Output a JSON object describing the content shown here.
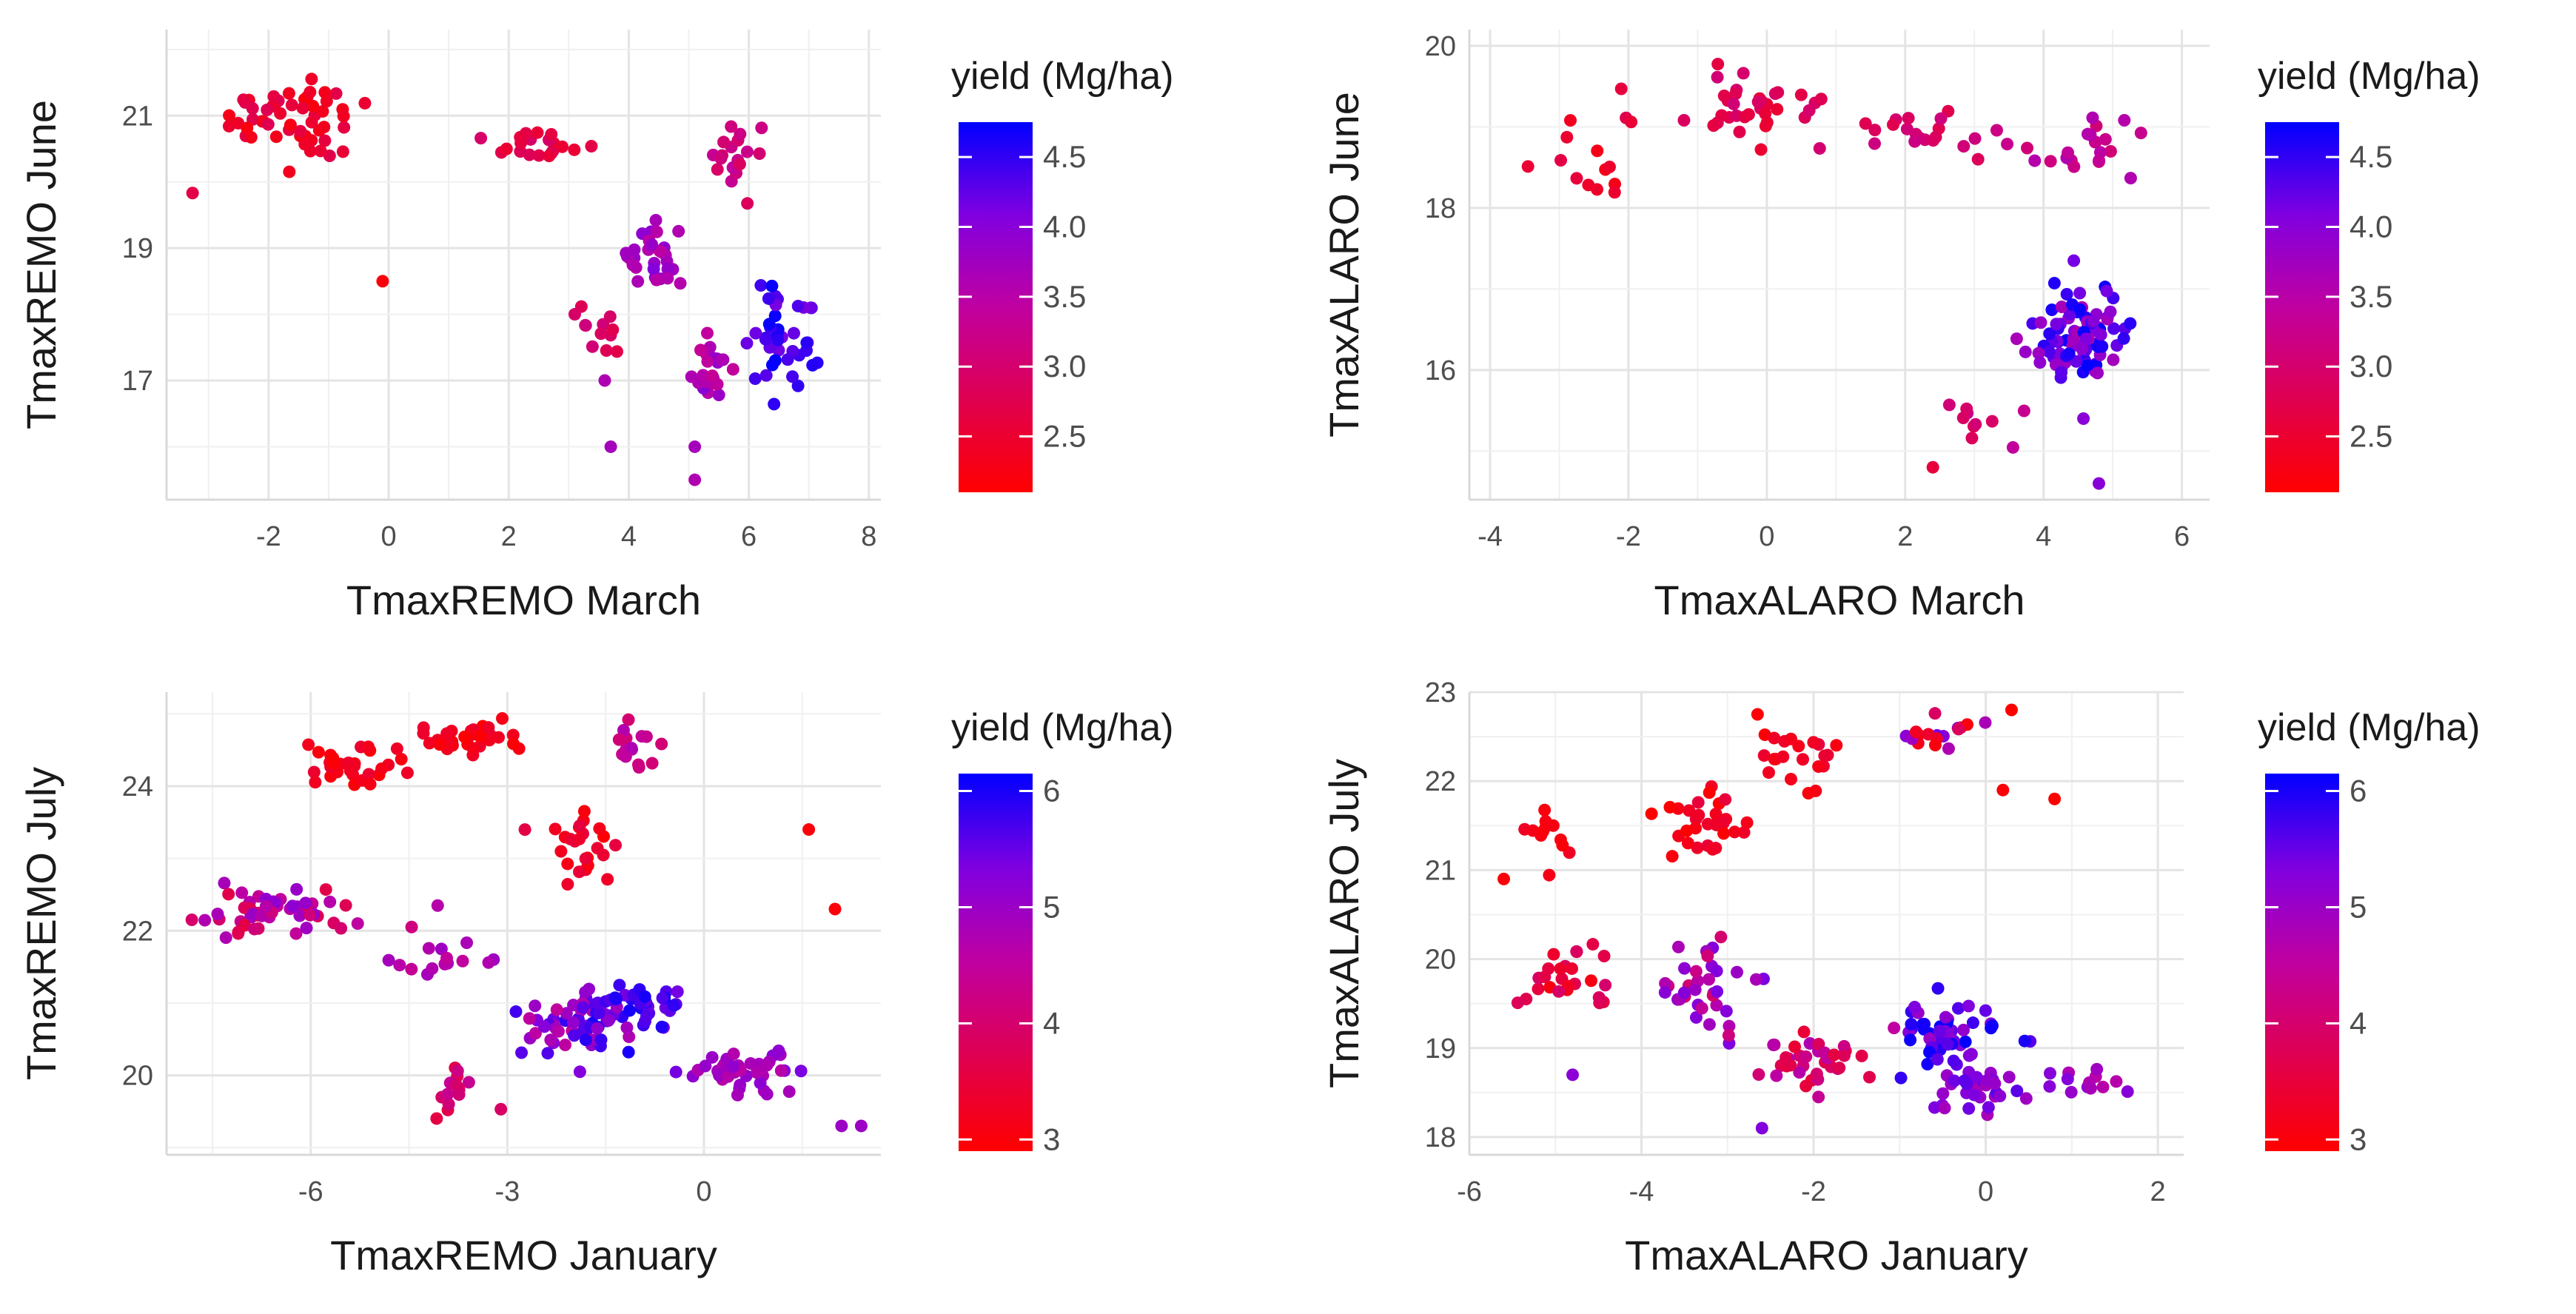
{
  "chart_data": [
    {
      "type": "scatter",
      "xlabel": "TmaxREMO March",
      "ylabel": "TmaxREMO June",
      "xlim": [
        -3.7,
        8.2
      ],
      "ylim": [
        15.2,
        22.3
      ],
      "xticks": [
        -2,
        0,
        2,
        4,
        6,
        8
      ],
      "yticks": [
        17,
        19,
        21
      ],
      "legend": {
        "title": "yield (Mg/ha)",
        "min": 2.1,
        "max": 4.75,
        "ticks": [
          2.5,
          3.0,
          3.5,
          4.0,
          4.5
        ]
      },
      "clusters": [
        {
          "cx": -1.5,
          "cy": 20.9,
          "sx": 1.1,
          "sy": 0.55,
          "n": 55,
          "v": [
            2.2,
            2.8
          ],
          "seed": 11
        },
        {
          "cx": 2.6,
          "cy": 20.5,
          "sx": 0.7,
          "sy": 0.25,
          "n": 20,
          "v": [
            2.5,
            3.0
          ],
          "seed": 12
        },
        {
          "cx": 5.7,
          "cy": 20.4,
          "sx": 0.45,
          "sy": 0.45,
          "n": 18,
          "v": [
            2.8,
            3.4
          ],
          "seed": 13
        },
        {
          "cx": 4.4,
          "cy": 18.9,
          "sx": 0.45,
          "sy": 0.45,
          "n": 30,
          "v": [
            3.4,
            4.1
          ],
          "seed": 14
        },
        {
          "cx": 6.6,
          "cy": 17.7,
          "sx": 0.6,
          "sy": 0.6,
          "n": 40,
          "v": [
            4.1,
            4.75
          ],
          "seed": 15
        },
        {
          "cx": 5.3,
          "cy": 17.2,
          "sx": 0.35,
          "sy": 0.35,
          "n": 25,
          "v": [
            3.3,
            4.0
          ],
          "seed": 16
        },
        {
          "cx": 3.5,
          "cy": 17.7,
          "sx": 0.45,
          "sy": 0.3,
          "n": 12,
          "v": [
            2.6,
            3.2
          ],
          "seed": 17
        }
      ],
      "points": [
        {
          "x": -0.1,
          "y": 18.5,
          "v": 2.2
        },
        {
          "x": 3.7,
          "y": 16.0,
          "v": 3.7
        },
        {
          "x": 5.1,
          "y": 15.5,
          "v": 3.6
        },
        {
          "x": 5.1,
          "y": 16.0,
          "v": 3.7
        },
        {
          "x": 3.6,
          "y": 17.0,
          "v": 3.6
        }
      ]
    },
    {
      "type": "scatter",
      "xlabel": "TmaxALARO March",
      "ylabel": "TmaxALARO June",
      "xlim": [
        -4.3,
        6.4
      ],
      "ylim": [
        14.4,
        20.2
      ],
      "xticks": [
        -4,
        -2,
        0,
        2,
        4,
        6
      ],
      "yticks": [
        16,
        18,
        20
      ],
      "legend": {
        "title": "yield (Mg/ha)",
        "min": 2.1,
        "max": 4.75,
        "ticks": [
          2.5,
          3.0,
          3.5,
          4.0,
          4.5
        ]
      },
      "clusters": [
        {
          "cx": -2.7,
          "cy": 18.6,
          "sx": 0.8,
          "sy": 0.55,
          "n": 15,
          "v": [
            2.2,
            2.8
          ],
          "seed": 21
        },
        {
          "cx": -0.1,
          "cy": 19.2,
          "sx": 0.7,
          "sy": 0.35,
          "n": 35,
          "v": [
            2.5,
            3.1
          ],
          "seed": 22
        },
        {
          "cx": 2.3,
          "cy": 18.9,
          "sx": 1.0,
          "sy": 0.25,
          "n": 20,
          "v": [
            2.7,
            3.2
          ],
          "seed": 23
        },
        {
          "cx": 4.7,
          "cy": 18.7,
          "sx": 0.7,
          "sy": 0.4,
          "n": 22,
          "v": [
            3.0,
            3.6
          ],
          "seed": 24
        },
        {
          "cx": 4.5,
          "cy": 16.4,
          "sx": 0.55,
          "sy": 0.5,
          "n": 90,
          "v": [
            3.6,
            4.75
          ],
          "seed": 25
        },
        {
          "cx": 3.0,
          "cy": 15.4,
          "sx": 0.4,
          "sy": 0.25,
          "n": 10,
          "v": [
            2.8,
            3.4
          ],
          "seed": 26
        }
      ],
      "points": [
        {
          "x": 2.4,
          "y": 14.8,
          "v": 2.6
        },
        {
          "x": 4.8,
          "y": 14.6,
          "v": 4.0
        }
      ]
    },
    {
      "type": "scatter",
      "xlabel": "TmaxREMO January",
      "ylabel": "TmaxREMO July",
      "xlim": [
        -8.2,
        2.7
      ],
      "ylim": [
        18.9,
        25.3
      ],
      "xticks": [
        -6,
        -3,
        0
      ],
      "yticks": [
        20,
        22,
        24
      ],
      "legend": {
        "title": "yield (Mg/ha)",
        "min": 2.9,
        "max": 6.15,
        "ticks": [
          3,
          4,
          5,
          6
        ]
      },
      "clusters": [
        {
          "cx": -5.3,
          "cy": 24.3,
          "sx": 0.7,
          "sy": 0.25,
          "n": 30,
          "v": [
            2.9,
            3.4
          ],
          "seed": 31
        },
        {
          "cx": -3.6,
          "cy": 24.7,
          "sx": 0.7,
          "sy": 0.25,
          "n": 35,
          "v": [
            2.9,
            3.4
          ],
          "seed": 32
        },
        {
          "cx": -1.8,
          "cy": 23.1,
          "sx": 0.5,
          "sy": 0.6,
          "n": 25,
          "v": [
            2.9,
            3.6
          ],
          "seed": 33
        },
        {
          "cx": -1.1,
          "cy": 24.6,
          "sx": 0.3,
          "sy": 0.3,
          "n": 15,
          "v": [
            4.0,
            4.8
          ],
          "seed": 34
        },
        {
          "cx": -6.5,
          "cy": 22.3,
          "sx": 1.1,
          "sy": 0.3,
          "n": 55,
          "v": [
            3.6,
            5.2
          ],
          "seed": 35
        },
        {
          "cx": -4.0,
          "cy": 21.7,
          "sx": 0.6,
          "sy": 0.35,
          "n": 15,
          "v": [
            4.4,
            5.0
          ],
          "seed": 36
        },
        {
          "cx": -1.8,
          "cy": 20.7,
          "sx": 0.8,
          "sy": 0.35,
          "n": 70,
          "v": [
            4.4,
            6.1
          ],
          "seed": 37
        },
        {
          "cx": -0.8,
          "cy": 21.0,
          "sx": 0.5,
          "sy": 0.25,
          "n": 25,
          "v": [
            5.4,
            6.15
          ],
          "seed": 38
        },
        {
          "cx": 0.5,
          "cy": 20.1,
          "sx": 0.8,
          "sy": 0.25,
          "n": 40,
          "v": [
            4.6,
            5.4
          ],
          "seed": 39
        },
        {
          "cx": -3.8,
          "cy": 20.0,
          "sx": 0.4,
          "sy": 0.35,
          "n": 15,
          "v": [
            3.4,
            4.4
          ],
          "seed": 40
        }
      ],
      "points": [
        {
          "x": 2.1,
          "y": 19.3,
          "v": 5.0
        },
        {
          "x": 2.4,
          "y": 19.3,
          "v": 5.0
        },
        {
          "x": 1.6,
          "y": 23.4,
          "v": 3.0
        },
        {
          "x": 2.0,
          "y": 22.3,
          "v": 3.0
        }
      ]
    },
    {
      "type": "scatter",
      "xlabel": "TmaxALARO January",
      "ylabel": "TmaxALARO July",
      "xlim": [
        -6.0,
        2.3
      ],
      "ylim": [
        17.8,
        23.0
      ],
      "xticks": [
        -6,
        -4,
        -2,
        0,
        2
      ],
      "yticks": [
        18,
        19,
        20,
        21,
        22,
        23
      ],
      "legend": {
        "title": "yield (Mg/ha)",
        "min": 2.9,
        "max": 6.15,
        "ticks": [
          3,
          4,
          5,
          6
        ]
      },
      "clusters": [
        {
          "cx": -5.1,
          "cy": 21.4,
          "sx": 0.35,
          "sy": 0.3,
          "n": 12,
          "v": [
            2.9,
            3.3
          ],
          "seed": 41
        },
        {
          "cx": -3.4,
          "cy": 21.5,
          "sx": 0.4,
          "sy": 0.3,
          "n": 30,
          "v": [
            2.9,
            3.5
          ],
          "seed": 42
        },
        {
          "cx": -2.1,
          "cy": 22.3,
          "sx": 0.6,
          "sy": 0.3,
          "n": 22,
          "v": [
            2.9,
            3.5
          ],
          "seed": 43
        },
        {
          "cx": -0.6,
          "cy": 22.5,
          "sx": 0.35,
          "sy": 0.25,
          "n": 18,
          "v": [
            3.0,
            5.4
          ],
          "seed": 44
        },
        {
          "cx": -4.8,
          "cy": 19.8,
          "sx": 0.5,
          "sy": 0.4,
          "n": 25,
          "v": [
            3.0,
            4.0
          ],
          "seed": 45
        },
        {
          "cx": -3.2,
          "cy": 19.7,
          "sx": 0.5,
          "sy": 0.45,
          "n": 35,
          "v": [
            4.0,
            5.4
          ],
          "seed": 46
        },
        {
          "cx": -2.0,
          "cy": 18.9,
          "sx": 0.55,
          "sy": 0.3,
          "n": 40,
          "v": [
            3.4,
            4.8
          ],
          "seed": 47
        },
        {
          "cx": -0.5,
          "cy": 19.2,
          "sx": 0.5,
          "sy": 0.3,
          "n": 50,
          "v": [
            5.0,
            6.15
          ],
          "seed": 48
        },
        {
          "cx": -0.1,
          "cy": 18.5,
          "sx": 0.5,
          "sy": 0.25,
          "n": 35,
          "v": [
            4.8,
            5.6
          ],
          "seed": 49
        },
        {
          "cx": 1.2,
          "cy": 18.6,
          "sx": 0.5,
          "sy": 0.2,
          "n": 12,
          "v": [
            4.6,
            5.3
          ],
          "seed": 50
        }
      ],
      "points": [
        {
          "x": -5.6,
          "y": 20.9,
          "v": 3.0
        },
        {
          "x": 0.3,
          "y": 22.8,
          "v": 2.9
        },
        {
          "x": 0.8,
          "y": 21.8,
          "v": 2.9
        },
        {
          "x": 0.2,
          "y": 21.9,
          "v": 3.0
        },
        {
          "x": -4.8,
          "y": 18.7,
          "v": 5.2
        },
        {
          "x": -2.6,
          "y": 18.1,
          "v": 5.3
        }
      ]
    }
  ]
}
